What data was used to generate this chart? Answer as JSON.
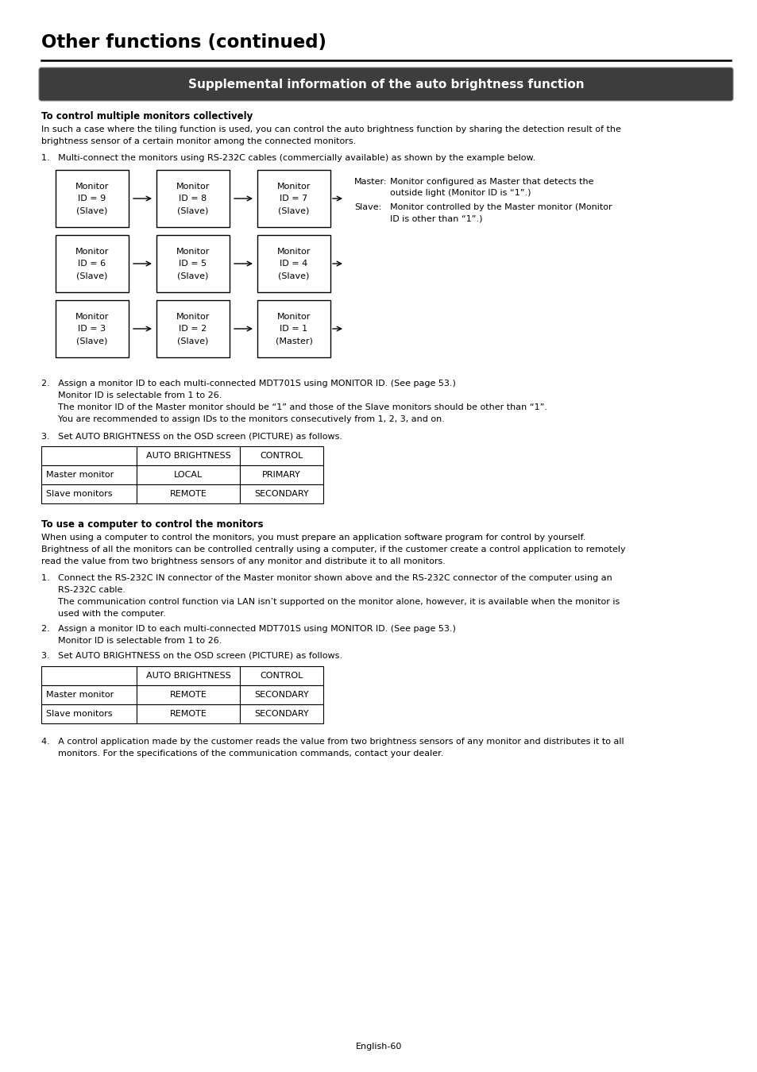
{
  "title": "Other functions (continued)",
  "section_header": "Supplemental information of the auto brightness function",
  "bg_color": "#ffffff",
  "header_bg": "#404040",
  "header_text_color": "#ffffff",
  "body_text_color": "#000000",
  "bold_heading1": "To control multiple monitors collectively",
  "para1_lines": [
    "In such a case where the tiling function is used, you can control the auto brightness function by sharing the detection result of the",
    "brightness sensor of a certain monitor among the connected monitors."
  ],
  "item1": "1.   Multi-connect the monitors using RS-232C cables (commercially available) as shown by the example below.",
  "monitor_rows": [
    [
      "Monitor\nID = 9\n(Slave)",
      "Monitor\nID = 8\n(Slave)",
      "Monitor\nID = 7\n(Slave)"
    ],
    [
      "Monitor\nID = 6\n(Slave)",
      "Monitor\nID = 5\n(Slave)",
      "Monitor\nID = 4\n(Slave)"
    ],
    [
      "Monitor\nID = 3\n(Slave)",
      "Monitor\nID = 2\n(Slave)",
      "Monitor\nID = 1\n(Master)"
    ]
  ],
  "master_label": "Master:",
  "master_text": " Monitor configured as Master that detects the\n  outside light (Monitor ID is “1”.)",
  "slave_label": "Slave:",
  "slave_text": "   Monitor controlled by the Master monitor (Monitor\n  ID is other than “1”.)",
  "item2_lines": [
    "2.   Assign a monitor ID to each multi-connected MDT701S using MONITOR ID. (See page 53.)",
    "      Monitor ID is selectable from 1 to 26.",
    "      The monitor ID of the Master monitor should be “1” and those of the Slave monitors should be other than “1”.",
    "      You are recommended to assign IDs to the monitors consecutively from 1, 2, 3, and on."
  ],
  "item3a": "3.   Set AUTO BRIGHTNESS on the OSD screen (PICTURE) as follows.",
  "table1_headers": [
    "",
    "AUTO BRIGHTNESS",
    "CONTROL"
  ],
  "table1_rows": [
    [
      "Master monitor",
      "LOCAL",
      "PRIMARY"
    ],
    [
      "Slave monitors",
      "REMOTE",
      "SECONDARY"
    ]
  ],
  "bold_heading2": "To use a computer to control the monitors",
  "para2_lines": [
    "When using a computer to control the monitors, you must prepare an application software program for control by yourself.",
    "Brightness of all the monitors can be controlled centrally using a computer, if the customer create a control application to remotely",
    "read the value from two brightness sensors of any monitor and distribute it to all monitors."
  ],
  "comp_item1_lines": [
    "1.   Connect the RS-232C IN connector of the Master monitor shown above and the RS-232C connector of the computer using an",
    "      RS-232C cable.",
    "      The communication control function via LAN isn’t supported on the monitor alone, however, it is available when the monitor is",
    "      used with the computer."
  ],
  "comp_item2_lines": [
    "2.   Assign a monitor ID to each multi-connected MDT701S using MONITOR ID. (See page 53.)",
    "      Monitor ID is selectable from 1 to 26."
  ],
  "comp_item3": "3.   Set AUTO BRIGHTNESS on the OSD screen (PICTURE) as follows.",
  "table2_headers": [
    "",
    "AUTO BRIGHTNESS",
    "CONTROL"
  ],
  "table2_rows": [
    [
      "Master monitor",
      "REMOTE",
      "SECONDARY"
    ],
    [
      "Slave monitors",
      "REMOTE",
      "SECONDARY"
    ]
  ],
  "item4_lines": [
    "4.   A control application made by the customer reads the value from two brightness sensors of any monitor and distributes it to all",
    "      monitors. For the specifications of the communication commands, contact your dealer."
  ],
  "footer": "English-60"
}
